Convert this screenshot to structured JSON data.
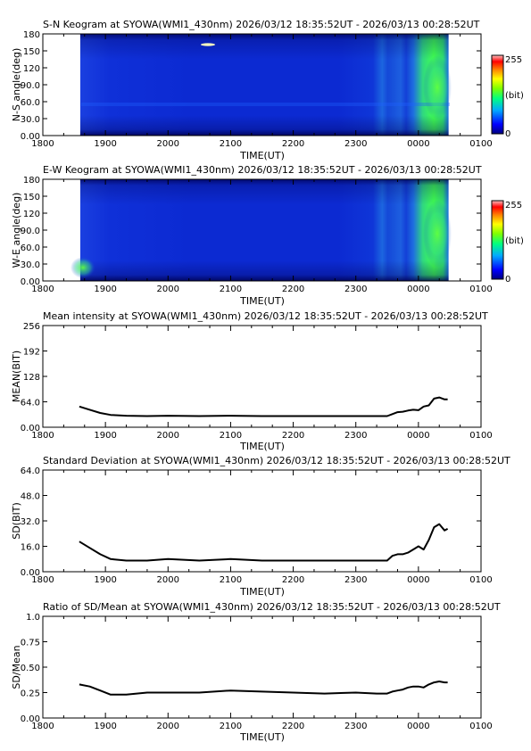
{
  "chart_data": [
    {
      "type": "heatmap",
      "title": "S-N Keogram at SYOWA(WMI1_430nm)    2026/03/12 18:35:52UT - 2026/03/13 00:28:52UT",
      "xlabel": "TIME(UT)",
      "ylabel": "N-S angle(deg)",
      "x_ticks": [
        "1800",
        "1900",
        "2000",
        "2100",
        "2200",
        "2300",
        "0000",
        "0100"
      ],
      "y_ticks": [
        "0.00",
        "30.0",
        "60.0",
        "90.0",
        "120",
        "150",
        "180"
      ],
      "ylim": [
        0,
        180
      ],
      "colorbar": {
        "max_label": "255",
        "unit_label": "(bit)",
        "min_label": "0"
      },
      "colorscale": [
        "#000080",
        "#0000ff",
        "#00aaff",
        "#00ff80",
        "#80ff00",
        "#ffff00",
        "#ff8000",
        "#ff0000",
        "#ffc0c0"
      ],
      "x_start": "18:35:52",
      "x_end": "00:28:52",
      "bright_onset": "23:45",
      "brightest": "00:15"
    },
    {
      "type": "heatmap",
      "title": "E-W Keogram at SYOWA(WMI1_430nm)    2026/03/12 18:35:52UT - 2026/03/13 00:28:52UT",
      "xlabel": "TIME(UT)",
      "ylabel": "W-E angle(deg)",
      "x_ticks": [
        "1800",
        "1900",
        "2000",
        "2100",
        "2200",
        "2300",
        "0000",
        "0100"
      ],
      "y_ticks": [
        "0.00",
        "30.0",
        "60.0",
        "90.0",
        "120",
        "150",
        "180"
      ],
      "ylim": [
        0,
        180
      ],
      "colorbar": {
        "max_label": "255",
        "unit_label": "(bit)",
        "min_label": "0"
      },
      "colorscale": [
        "#000080",
        "#0000ff",
        "#00aaff",
        "#00ff80",
        "#80ff00",
        "#ffff00",
        "#ff8000",
        "#ff0000",
        "#ffc0c0"
      ],
      "x_start": "18:35:52",
      "x_end": "00:28:52",
      "bright_onset": "23:45",
      "brightest": "00:15"
    },
    {
      "type": "line",
      "title": "Mean intensity at SYOWA(WMI1_430nm)    2026/03/12 18:35:52UT - 2026/03/13 00:28:52UT",
      "xlabel": "TIME(UT)",
      "ylabel": "MEAN(BIT)",
      "x_ticks": [
        "1800",
        "1900",
        "2000",
        "2100",
        "2200",
        "2300",
        "0000",
        "0100"
      ],
      "y_ticks": [
        "0.00",
        "64.0",
        "128",
        "192",
        "256"
      ],
      "ylim": [
        0,
        256
      ],
      "x": [
        "18:35",
        "18:45",
        "18:55",
        "19:05",
        "19:20",
        "19:40",
        "20:00",
        "20:30",
        "21:00",
        "21:30",
        "22:00",
        "22:30",
        "23:00",
        "23:20",
        "23:30",
        "23:35",
        "23:40",
        "23:45",
        "23:50",
        "23:55",
        "00:00",
        "00:05",
        "00:10",
        "00:15",
        "00:20",
        "00:25",
        "00:28"
      ],
      "series": [
        {
          "values": [
            52,
            44,
            36,
            31,
            29,
            28,
            29,
            28,
            29,
            28,
            28,
            28,
            28,
            28,
            28,
            33,
            38,
            39,
            42,
            44,
            43,
            52,
            55,
            72,
            75,
            70,
            70
          ]
        }
      ]
    },
    {
      "type": "line",
      "title": "Standard Deviation at SYOWA(WMI1_430nm)    2026/03/12 18:35:52UT - 2026/03/13 00:28:52UT",
      "xlabel": "TIME(UT)",
      "ylabel": "SD(BIT)",
      "x_ticks": [
        "1800",
        "1900",
        "2000",
        "2100",
        "2200",
        "2300",
        "0000",
        "0100"
      ],
      "y_ticks": [
        "0.00",
        "16.0",
        "32.0",
        "48.0",
        "64.0"
      ],
      "ylim": [
        0,
        64
      ],
      "x": [
        "18:35",
        "18:45",
        "18:55",
        "19:05",
        "19:20",
        "19:40",
        "20:00",
        "20:30",
        "21:00",
        "21:30",
        "22:00",
        "22:30",
        "23:00",
        "23:20",
        "23:30",
        "23:35",
        "23:40",
        "23:45",
        "23:50",
        "23:55",
        "00:00",
        "00:05",
        "00:10",
        "00:15",
        "00:20",
        "00:25",
        "00:28"
      ],
      "series": [
        {
          "values": [
            19,
            15,
            11,
            8,
            7,
            7,
            8,
            7,
            8,
            7,
            7,
            7,
            7,
            7,
            7,
            10,
            11,
            11,
            12,
            14,
            16,
            14,
            20,
            28,
            30,
            26,
            27
          ]
        }
      ]
    },
    {
      "type": "line",
      "title": "Ratio of SD/Mean at SYOWA(WMI1_430nm)    2026/03/12 18:35:52UT - 2026/03/13 00:28:52UT",
      "xlabel": "TIME(UT)",
      "ylabel": "SD/Mean",
      "x_ticks": [
        "1800",
        "1900",
        "2000",
        "2100",
        "2200",
        "2300",
        "0000",
        "0100"
      ],
      "y_ticks": [
        "0.00",
        "0.25",
        "0.50",
        "0.75",
        "1.0"
      ],
      "ylim": [
        0,
        1
      ],
      "x": [
        "18:35",
        "18:45",
        "18:55",
        "19:05",
        "19:20",
        "19:40",
        "20:00",
        "20:30",
        "21:00",
        "21:30",
        "22:00",
        "22:30",
        "23:00",
        "23:20",
        "23:30",
        "23:35",
        "23:40",
        "23:45",
        "23:50",
        "23:55",
        "00:00",
        "00:05",
        "00:10",
        "00:15",
        "00:20",
        "00:25",
        "00:28"
      ],
      "series": [
        {
          "values": [
            0.33,
            0.31,
            0.27,
            0.23,
            0.23,
            0.25,
            0.25,
            0.25,
            0.27,
            0.26,
            0.25,
            0.24,
            0.25,
            0.24,
            0.24,
            0.26,
            0.27,
            0.28,
            0.3,
            0.31,
            0.31,
            0.3,
            0.33,
            0.35,
            0.36,
            0.35,
            0.35
          ]
        }
      ]
    }
  ]
}
